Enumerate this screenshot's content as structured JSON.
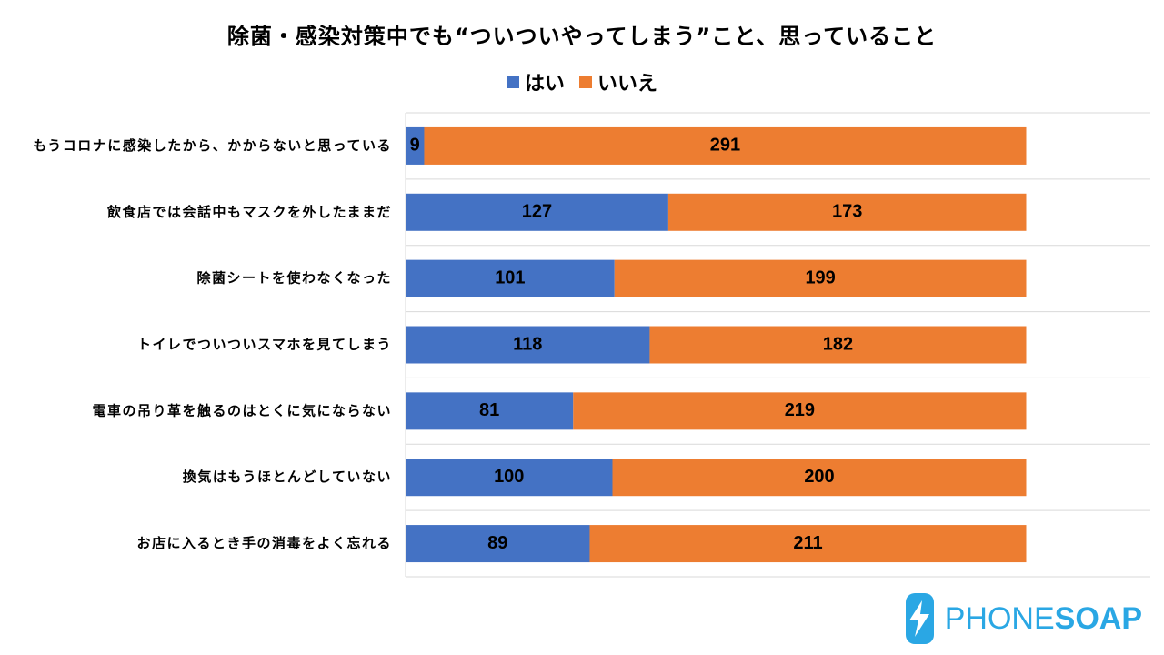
{
  "chart_data": {
    "type": "bar",
    "orientation": "horizontal",
    "stacked": true,
    "title": "除菌・感染対策中でも“ついついやってしまう”こと、思っていること",
    "categories": [
      "もうコロナに感染したから、かからないと思っている",
      "飲食店では会話中もマスクを外したままだ",
      "除菌シートを使わなくなった",
      "トイレでついついスマホを見てしまう",
      "電車の吊り革を触るのはとくに気にならない",
      "換気はもうほとんどしていない",
      "お店に入るとき手の消毒をよく忘れる"
    ],
    "series": [
      {
        "name": "はい",
        "color": "#4472c4",
        "values": [
          9,
          127,
          101,
          118,
          81,
          100,
          89
        ]
      },
      {
        "name": "いいえ",
        "color": "#ed7d31",
        "values": [
          291,
          173,
          199,
          182,
          219,
          200,
          211
        ]
      }
    ],
    "xlim": [
      0,
      360
    ],
    "grid": true,
    "legend_position": "top"
  },
  "logo": {
    "text_light": "PHONE",
    "text_bold": "SOAP"
  }
}
